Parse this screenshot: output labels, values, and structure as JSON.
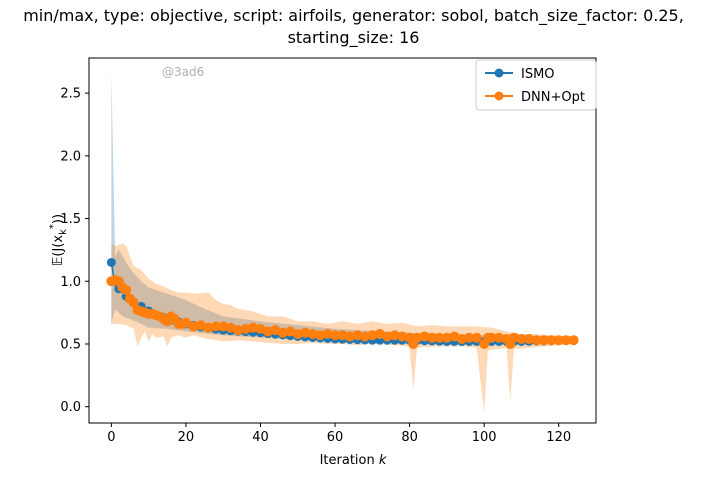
{
  "title": {
    "line1": "min/max, type: objective, script: airfoils, generator: sobol, batch_size_factor: 0.25,",
    "line2": "starting_size: 16"
  },
  "watermark": "@3ad6",
  "chart_data": {
    "type": "line",
    "xlabel_prefix": "Iteration ",
    "xlabel_var": "k",
    "ylabel": "E(J(x*k))",
    "xlim": [
      -6,
      130
    ],
    "ylim": [
      -0.13,
      2.78
    ],
    "x_ticks": [
      0,
      20,
      40,
      60,
      80,
      100,
      120
    ],
    "y_ticks": [
      0.0,
      0.5,
      1.0,
      1.5,
      2.0,
      2.5
    ],
    "y_tick_labels": [
      "0.0",
      "0.5",
      "1.0",
      "1.5",
      "2.0",
      "2.5"
    ],
    "legend_position": "top-right",
    "grid": false,
    "series": [
      {
        "name": "ISMO",
        "color": "#1f77b4",
        "mean": [
          [
            0,
            1.15
          ],
          [
            1,
            0.97
          ],
          [
            2,
            0.94
          ],
          [
            3,
            0.91
          ],
          [
            4,
            0.88
          ],
          [
            5,
            0.85
          ],
          [
            7,
            0.82
          ],
          [
            9,
            0.78
          ],
          [
            12,
            0.73
          ],
          [
            15,
            0.7
          ],
          [
            20,
            0.66
          ],
          [
            25,
            0.63
          ],
          [
            30,
            0.61
          ],
          [
            35,
            0.6
          ],
          [
            40,
            0.59
          ],
          [
            50,
            0.56
          ],
          [
            60,
            0.54
          ],
          [
            70,
            0.53
          ],
          [
            80,
            0.53
          ],
          [
            90,
            0.52
          ],
          [
            100,
            0.52
          ],
          [
            110,
            0.52
          ],
          [
            124,
            0.53
          ]
        ],
        "upper": [
          [
            0,
            2.66
          ],
          [
            1,
            1.2
          ],
          [
            2,
            1.25
          ],
          [
            3,
            1.2
          ],
          [
            5,
            1.1
          ],
          [
            8,
            1.0
          ],
          [
            10,
            0.95
          ],
          [
            15,
            0.9
          ],
          [
            20,
            0.85
          ],
          [
            25,
            0.78
          ],
          [
            30,
            0.72
          ],
          [
            40,
            0.68
          ],
          [
            60,
            0.62
          ],
          [
            80,
            0.59
          ],
          [
            100,
            0.57
          ],
          [
            124,
            0.56
          ]
        ],
        "lower": [
          [
            0,
            0.66
          ],
          [
            1,
            0.78
          ],
          [
            3,
            0.72
          ],
          [
            5,
            0.7
          ],
          [
            8,
            0.66
          ],
          [
            10,
            0.63
          ],
          [
            15,
            0.62
          ],
          [
            20,
            0.6
          ],
          [
            30,
            0.57
          ],
          [
            40,
            0.55
          ],
          [
            60,
            0.52
          ],
          [
            80,
            0.5
          ],
          [
            100,
            0.5
          ],
          [
            124,
            0.5
          ]
        ]
      },
      {
        "name": "DNN+Opt",
        "color": "#ff7f0e",
        "mean": [
          [
            0,
            1.0
          ],
          [
            1,
            1.01
          ],
          [
            2,
            1.0
          ],
          [
            3,
            0.95
          ],
          [
            4,
            0.93
          ],
          [
            5,
            0.86
          ],
          [
            6,
            0.83
          ],
          [
            7,
            0.77
          ],
          [
            8,
            0.76
          ],
          [
            9,
            0.75
          ],
          [
            10,
            0.74
          ],
          [
            11,
            0.74
          ],
          [
            12,
            0.73
          ],
          [
            13,
            0.72
          ],
          [
            14,
            0.7
          ],
          [
            15,
            0.68
          ],
          [
            16,
            0.72
          ],
          [
            17,
            0.7
          ],
          [
            18,
            0.66
          ],
          [
            19,
            0.66
          ],
          [
            20,
            0.67
          ],
          [
            22,
            0.64
          ],
          [
            24,
            0.65
          ],
          [
            26,
            0.63
          ],
          [
            28,
            0.64
          ],
          [
            30,
            0.64
          ],
          [
            32,
            0.63
          ],
          [
            34,
            0.61
          ],
          [
            36,
            0.62
          ],
          [
            38,
            0.63
          ],
          [
            40,
            0.62
          ],
          [
            42,
            0.6
          ],
          [
            44,
            0.61
          ],
          [
            46,
            0.59
          ],
          [
            48,
            0.6
          ],
          [
            50,
            0.58
          ],
          [
            52,
            0.59
          ],
          [
            54,
            0.58
          ],
          [
            56,
            0.57
          ],
          [
            58,
            0.58
          ],
          [
            60,
            0.57
          ],
          [
            62,
            0.57
          ],
          [
            64,
            0.56
          ],
          [
            66,
            0.57
          ],
          [
            68,
            0.56
          ],
          [
            70,
            0.57
          ],
          [
            72,
            0.58
          ],
          [
            74,
            0.56
          ],
          [
            76,
            0.57
          ],
          [
            78,
            0.56
          ],
          [
            80,
            0.55
          ],
          [
            81,
            0.5
          ],
          [
            82,
            0.55
          ],
          [
            84,
            0.56
          ],
          [
            86,
            0.55
          ],
          [
            88,
            0.55
          ],
          [
            90,
            0.55
          ],
          [
            92,
            0.56
          ],
          [
            94,
            0.54
          ],
          [
            96,
            0.55
          ],
          [
            98,
            0.55
          ],
          [
            100,
            0.5
          ],
          [
            101,
            0.55
          ],
          [
            102,
            0.55
          ],
          [
            104,
            0.55
          ],
          [
            106,
            0.54
          ],
          [
            107,
            0.5
          ],
          [
            108,
            0.55
          ],
          [
            110,
            0.54
          ],
          [
            112,
            0.54
          ],
          [
            114,
            0.53
          ],
          [
            116,
            0.53
          ],
          [
            118,
            0.53
          ],
          [
            120,
            0.53
          ],
          [
            122,
            0.53
          ],
          [
            124,
            0.53
          ]
        ],
        "upper": [
          [
            0,
            1.3
          ],
          [
            1,
            1.28
          ],
          [
            3,
            1.3
          ],
          [
            4,
            1.28
          ],
          [
            6,
            1.12
          ],
          [
            8,
            1.09
          ],
          [
            10,
            1.02
          ],
          [
            12,
            0.98
          ],
          [
            14,
            0.96
          ],
          [
            16,
            0.93
          ],
          [
            18,
            0.91
          ],
          [
            20,
            0.91
          ],
          [
            22,
            0.9
          ],
          [
            26,
            0.91
          ],
          [
            28,
            0.85
          ],
          [
            30,
            0.82
          ],
          [
            32,
            0.81
          ],
          [
            34,
            0.78
          ],
          [
            38,
            0.76
          ],
          [
            42,
            0.72
          ],
          [
            46,
            0.72
          ],
          [
            50,
            0.68
          ],
          [
            54,
            0.68
          ],
          [
            58,
            0.66
          ],
          [
            62,
            0.68
          ],
          [
            66,
            0.66
          ],
          [
            70,
            0.68
          ],
          [
            74,
            0.66
          ],
          [
            78,
            0.67
          ],
          [
            82,
            0.64
          ],
          [
            86,
            0.65
          ],
          [
            90,
            0.64
          ],
          [
            94,
            0.64
          ],
          [
            98,
            0.64
          ],
          [
            102,
            0.63
          ],
          [
            106,
            0.6
          ],
          [
            110,
            0.58
          ],
          [
            114,
            0.58
          ],
          [
            118,
            0.57
          ],
          [
            124,
            0.56
          ]
        ],
        "lower": [
          [
            0,
            0.66
          ],
          [
            2,
            0.66
          ],
          [
            4,
            0.65
          ],
          [
            6,
            0.62
          ],
          [
            7,
            0.48
          ],
          [
            8,
            0.55
          ],
          [
            9,
            0.6
          ],
          [
            10,
            0.52
          ],
          [
            11,
            0.58
          ],
          [
            12,
            0.55
          ],
          [
            14,
            0.56
          ],
          [
            15,
            0.48
          ],
          [
            16,
            0.55
          ],
          [
            18,
            0.57
          ],
          [
            20,
            0.55
          ],
          [
            22,
            0.57
          ],
          [
            26,
            0.54
          ],
          [
            30,
            0.52
          ],
          [
            34,
            0.53
          ],
          [
            38,
            0.52
          ],
          [
            42,
            0.51
          ],
          [
            46,
            0.5
          ],
          [
            50,
            0.5
          ],
          [
            54,
            0.51
          ],
          [
            58,
            0.5
          ],
          [
            62,
            0.5
          ],
          [
            66,
            0.49
          ],
          [
            70,
            0.5
          ],
          [
            76,
            0.49
          ],
          [
            80,
            0.48
          ],
          [
            81,
            0.13
          ],
          [
            82,
            0.47
          ],
          [
            86,
            0.48
          ],
          [
            90,
            0.48
          ],
          [
            94,
            0.48
          ],
          [
            98,
            0.47
          ],
          [
            100,
            -0.05
          ],
          [
            101,
            0.45
          ],
          [
            104,
            0.46
          ],
          [
            106,
            0.47
          ],
          [
            107,
            0.05
          ],
          [
            108,
            0.46
          ],
          [
            112,
            0.47
          ],
          [
            116,
            0.48
          ],
          [
            120,
            0.49
          ],
          [
            124,
            0.5
          ]
        ]
      }
    ]
  },
  "colors": {
    "ismo": "#1f77b4",
    "dnn": "#ff7f0e"
  }
}
